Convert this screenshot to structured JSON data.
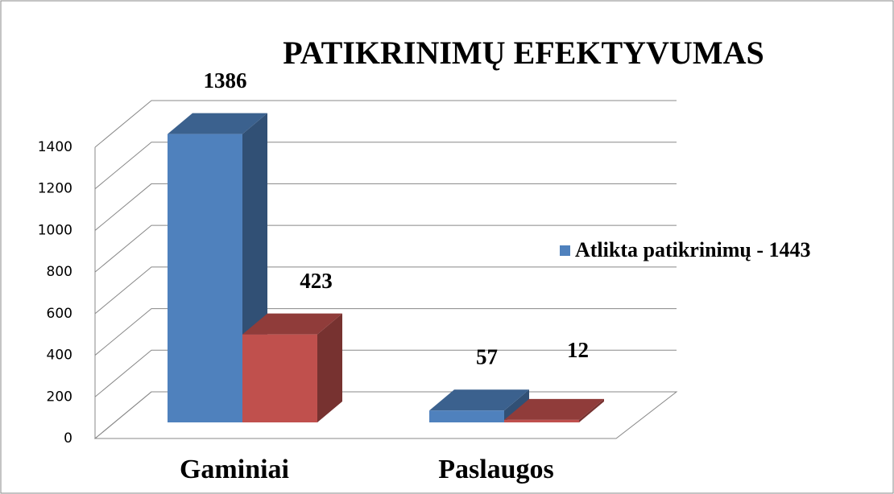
{
  "chart_data": {
    "type": "bar3d",
    "title": "PATIKRINIMŲ EFEKTYVUMAS",
    "categories": [
      "Gaminiai",
      "Paslaugos"
    ],
    "series": [
      {
        "name": "Atlikta patikrinimų - 1443",
        "color": "#4f81bd",
        "values": [
          1386,
          57
        ]
      },
      {
        "color": "#c0504d",
        "values": [
          423,
          12
        ]
      }
    ],
    "ylim": [
      0,
      1400
    ],
    "yticks": [
      0,
      200,
      400,
      600,
      800,
      1000,
      1200,
      1400
    ],
    "grid": true,
    "legend": "right"
  }
}
